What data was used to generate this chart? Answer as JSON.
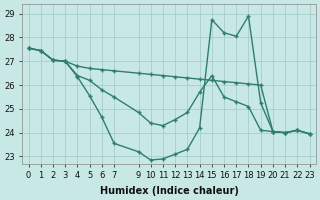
{
  "xlabel": "Humidex (Indice chaleur)",
  "xlim": [
    -0.5,
    23.5
  ],
  "ylim": [
    22.7,
    29.4
  ],
  "xticks": [
    0,
    1,
    2,
    3,
    4,
    5,
    6,
    7,
    9,
    10,
    11,
    12,
    13,
    14,
    15,
    16,
    17,
    18,
    19,
    20,
    21,
    22,
    23
  ],
  "yticks": [
    23,
    24,
    25,
    26,
    27,
    28,
    29
  ],
  "bg_color": "#c8e8e5",
  "grid_color": "#a0c8c5",
  "line_color": "#2e7d72",
  "line1_x": [
    0,
    1,
    2,
    3,
    4,
    5,
    6,
    7,
    9,
    10,
    11,
    12,
    13,
    14,
    15,
    16,
    17,
    18,
    19,
    20,
    21,
    22,
    23
  ],
  "line1_y": [
    27.55,
    27.45,
    27.05,
    27.0,
    26.8,
    26.7,
    26.65,
    26.6,
    26.5,
    26.45,
    26.4,
    26.35,
    26.3,
    26.25,
    26.2,
    26.15,
    26.1,
    26.05,
    26.0,
    24.05,
    24.0,
    24.1,
    23.95
  ],
  "line2_x": [
    0,
    1,
    2,
    3,
    4,
    5,
    6,
    7,
    9,
    10,
    11,
    12,
    13,
    14,
    15,
    16,
    17,
    18,
    19,
    20,
    21,
    22,
    23
  ],
  "line2_y": [
    27.55,
    27.45,
    27.05,
    27.0,
    26.4,
    26.2,
    25.8,
    25.5,
    24.85,
    24.4,
    24.3,
    24.55,
    24.85,
    25.7,
    26.4,
    25.5,
    25.3,
    25.1,
    24.1,
    24.05,
    24.0,
    24.1,
    23.95
  ],
  "line3_x": [
    0,
    1,
    2,
    3,
    4,
    5,
    6,
    7,
    9,
    10,
    11,
    12,
    13,
    14,
    15,
    16,
    17,
    18,
    19,
    20,
    21,
    22,
    23
  ],
  "line3_y": [
    27.55,
    27.45,
    27.05,
    27.0,
    26.35,
    25.55,
    24.65,
    23.55,
    23.2,
    22.85,
    22.9,
    23.1,
    23.3,
    24.2,
    28.75,
    28.2,
    28.05,
    28.9,
    25.25,
    24.05,
    24.0,
    24.1,
    23.95
  ]
}
